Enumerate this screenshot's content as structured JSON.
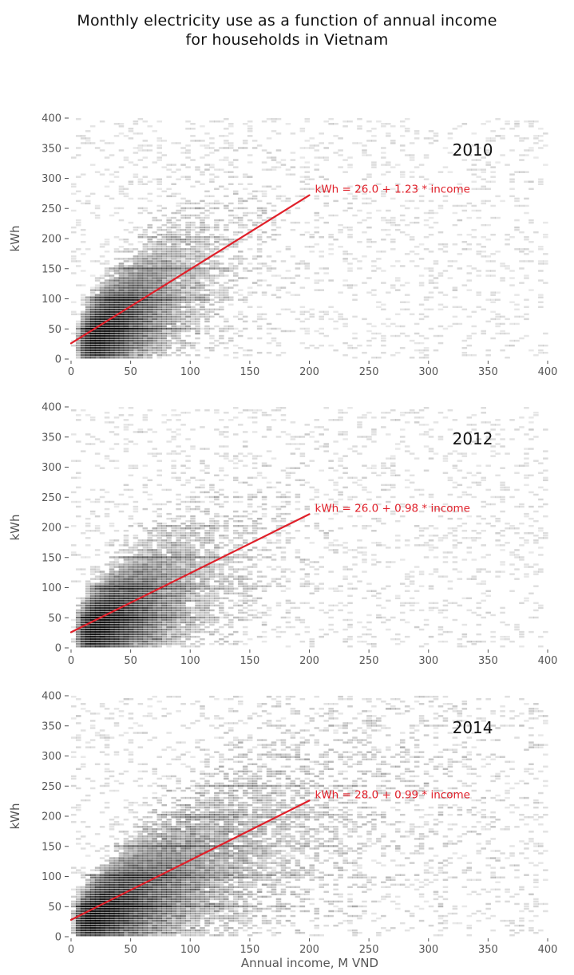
{
  "title_lines": [
    "Monthly electricity use as a function of annual income",
    "for households in Vietnam"
  ],
  "xlabel": "Annual income, M VND",
  "ylabel": "kWh",
  "chart_data": [
    {
      "type": "heatmap",
      "subplot_label": "2010",
      "xlabel": "",
      "ylabel": "kWh",
      "xlim": [
        0,
        400
      ],
      "ylim": [
        0,
        400
      ],
      "x_ticks": [
        "0",
        "50",
        "100",
        "150",
        "200",
        "250",
        "300",
        "350",
        "400"
      ],
      "y_ticks": [
        "0",
        "50",
        "100",
        "150",
        "200",
        "250",
        "300",
        "350",
        "400"
      ],
      "fit": {
        "intercept": 26.0,
        "slope": 1.23,
        "x_range": [
          0,
          200
        ],
        "color": "#e0202a"
      },
      "equation_label": "kWh = 26.0 + 1.23 * income",
      "density_color": "#000000",
      "grid": false
    },
    {
      "type": "heatmap",
      "subplot_label": "2012",
      "xlabel": "",
      "ylabel": "kWh",
      "xlim": [
        0,
        400
      ],
      "ylim": [
        0,
        400
      ],
      "x_ticks": [
        "0",
        "50",
        "100",
        "150",
        "200",
        "250",
        "300",
        "350",
        "400"
      ],
      "y_ticks": [
        "0",
        "50",
        "100",
        "150",
        "200",
        "250",
        "300",
        "350",
        "400"
      ],
      "fit": {
        "intercept": 26.0,
        "slope": 0.98,
        "x_range": [
          0,
          200
        ],
        "color": "#e0202a"
      },
      "equation_label": "kWh = 26.0 + 0.98 * income",
      "density_color": "#000000",
      "grid": false
    },
    {
      "type": "heatmap",
      "subplot_label": "2014",
      "xlabel": "Annual income, M VND",
      "ylabel": "kWh",
      "xlim": [
        0,
        400
      ],
      "ylim": [
        0,
        400
      ],
      "x_ticks": [
        "0",
        "50",
        "100",
        "150",
        "200",
        "250",
        "300",
        "350",
        "400"
      ],
      "y_ticks": [
        "0",
        "50",
        "100",
        "150",
        "200",
        "250",
        "300",
        "350",
        "400"
      ],
      "fit": {
        "intercept": 28.0,
        "slope": 0.99,
        "x_range": [
          0,
          200
        ],
        "color": "#e0202a"
      },
      "equation_label": "kWh = 28.0 + 0.99 * income",
      "density_color": "#000000",
      "grid": false
    }
  ]
}
